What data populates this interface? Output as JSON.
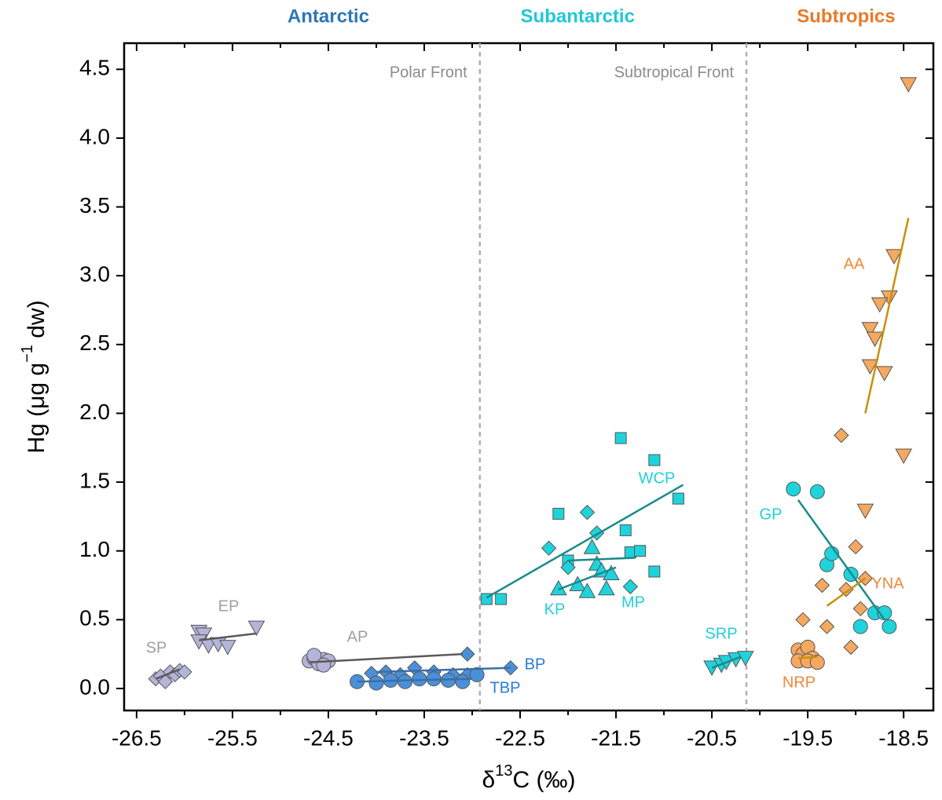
{
  "chart_data": {
    "type": "scatter",
    "xlabel_parts": [
      "δ",
      "13",
      "C (‰)"
    ],
    "ylabel_parts": [
      "Hg (μg g",
      "−1",
      " dw)"
    ],
    "xlim": [
      -26.63,
      -18.19
    ],
    "ylim": [
      -0.16,
      4.69
    ],
    "xticks": [
      -26.5,
      -25.5,
      -24.5,
      -23.5,
      -22.5,
      -21.5,
      -20.5,
      -19.5,
      -18.5
    ],
    "xminorticks": [
      -26,
      -25,
      -24,
      -23,
      -22,
      -21,
      -20,
      -19
    ],
    "yticks": [
      {
        "value": 0,
        "label": "0.0"
      },
      0.5,
      {
        "value": 1,
        "label": "1.0"
      },
      1.5,
      {
        "value": 2,
        "label": "2.0"
      },
      2.5,
      {
        "value": 3,
        "label": "3.0"
      },
      3.5,
      {
        "value": 4,
        "label": "4.0"
      },
      4.5
    ],
    "regions": [
      {
        "name": "Antarctic",
        "color": "#2e75b6",
        "x": -24.5
      },
      {
        "name": "Subantarctic",
        "color": "#1fc8d4",
        "x": -21.9
      },
      {
        "name": "Subtropics",
        "color": "#e87b2a",
        "x": -19.1
      }
    ],
    "fronts": [
      {
        "name": "Polar Front",
        "x": -22.92
      },
      {
        "name": "Subtropical Front",
        "x": -20.14
      }
    ],
    "series": [
      {
        "name": "SP",
        "marker": "diamond",
        "color": "#b4b4d8",
        "line_color": "#5a5a5a",
        "label_color": "#a0a0a0",
        "x": [
          -26.3,
          -26.25,
          -26.2,
          -26.15,
          -26.1,
          -26.05,
          -26.0
        ],
        "y": [
          0.07,
          0.09,
          0.05,
          0.12,
          0.1,
          0.13,
          0.12
        ],
        "fit_x": [
          -26.3,
          -26.05
        ],
        "fit_y": [
          0.07,
          0.14
        ]
      },
      {
        "name": "EP",
        "marker": "tri-down",
        "color": "#b4b4d8",
        "line_color": "#5a5a5a",
        "label_color": "#a0a0a0",
        "x": [
          -25.85,
          -25.8,
          -25.85,
          -25.75,
          -25.65,
          -25.55,
          -25.25
        ],
        "y": [
          0.42,
          0.4,
          0.35,
          0.32,
          0.33,
          0.31,
          0.45
        ],
        "fit_x": [
          -25.85,
          -25.25
        ],
        "fit_y": [
          0.35,
          0.4
        ]
      },
      {
        "name": "AP",
        "marker": "circle",
        "color": "#b4b4d8",
        "line_color": "#5a5a5a",
        "label_color": "#a0a0a0",
        "x": [
          -24.7,
          -24.65,
          -24.6,
          -24.55,
          -24.5,
          -24.65,
          -24.55
        ],
        "y": [
          0.2,
          0.22,
          0.18,
          0.21,
          0.2,
          0.24,
          0.17
        ],
        "fit_x": [
          -24.7,
          -23.1
        ],
        "fit_y": [
          0.19,
          0.25
        ]
      },
      {
        "name": "BP",
        "marker": "diamond",
        "color": "#4a90d9",
        "line_color": "#3b6ea5",
        "label_color": "#2a7bd6",
        "x": [
          -24.05,
          -23.9,
          -23.75,
          -23.6,
          -23.4,
          -23.2,
          -23.05,
          -23.05,
          -22.6
        ],
        "y": [
          0.11,
          0.12,
          0.1,
          0.15,
          0.12,
          0.1,
          0.1,
          0.25,
          0.15
        ],
        "fit_x": [
          -24.0,
          -22.6
        ],
        "fit_y": [
          0.12,
          0.15
        ]
      },
      {
        "name": "TBP",
        "marker": "circle",
        "color": "#4a90d9",
        "line_color": "#3b6ea5",
        "label_color": "#2a7bd6",
        "x": [
          -24.2,
          -24.0,
          -23.85,
          -23.7,
          -23.55,
          -23.4,
          -23.25,
          -23.1,
          -22.95
        ],
        "y": [
          0.05,
          0.04,
          0.06,
          0.05,
          0.07,
          0.07,
          0.06,
          0.05,
          0.1
        ],
        "fit_x": [
          -24.2,
          -23.0
        ],
        "fit_y": [
          0.05,
          0.07
        ]
      },
      {
        "name": "WCP",
        "marker": "square",
        "color": "#1ed3db",
        "line_color": "#1a8a8a",
        "label_color": "#20d0d8",
        "x": [
          -22.85,
          -22.7,
          -22.1,
          -22.0,
          -21.45,
          -21.4,
          -21.35,
          -21.25,
          -21.1,
          -21.1,
          -20.85
        ],
        "y": [
          0.65,
          0.65,
          1.27,
          0.93,
          1.82,
          1.15,
          0.99,
          1.0,
          0.85,
          1.66,
          1.38
        ],
        "fit_x": [
          -22.85,
          -20.8
        ],
        "fit_y": [
          0.66,
          1.48
        ]
      },
      {
        "name": "MP",
        "marker": "diamond",
        "color": "#1ed3db",
        "line_color": "#1a8a8a",
        "label_color": "#20d0d8",
        "x": [
          -22.2,
          -22.0,
          -21.8,
          -21.7,
          -21.35
        ],
        "y": [
          1.02,
          0.88,
          1.28,
          1.13,
          0.74
        ],
        "fit_x": [
          -22.0,
          -21.3
        ],
        "fit_y": [
          0.93,
          0.95
        ]
      },
      {
        "name": "KP",
        "marker": "tri-up",
        "color": "#1ed3db",
        "line_color": "#1a8a8a",
        "label_color": "#20d0d8",
        "x": [
          -22.1,
          -21.9,
          -21.8,
          -21.75,
          -21.7,
          -21.65,
          -21.6,
          -21.55
        ],
        "y": [
          0.72,
          0.75,
          0.7,
          1.02,
          0.9,
          0.85,
          0.72,
          0.83
        ],
        "fit_x": [
          -22.1,
          -21.5
        ],
        "fit_y": [
          0.72,
          0.88
        ]
      },
      {
        "name": "SRP",
        "marker": "tri-down",
        "color": "#1ed3db",
        "line_color": "#1a8a8a",
        "label_color": "#20d0d8",
        "x": [
          -20.5,
          -20.4,
          -20.35,
          -20.25,
          -20.15
        ],
        "y": [
          0.16,
          0.18,
          0.2,
          0.22,
          0.23
        ],
        "fit_x": [
          -20.5,
          -20.2
        ],
        "fit_y": [
          0.15,
          0.23
        ]
      },
      {
        "name": "GP",
        "marker": "circle",
        "color": "#1ed3db",
        "line_color": "#1a8a8a",
        "label_color": "#20d0d8",
        "x": [
          -19.65,
          -19.4,
          -19.3,
          -19.25,
          -19.05,
          -18.95,
          -18.8,
          -18.7,
          -18.65
        ],
        "y": [
          1.45,
          1.43,
          0.9,
          0.98,
          0.83,
          0.45,
          0.55,
          0.55,
          0.45
        ],
        "fit_x": [
          -19.6,
          -18.7
        ],
        "fit_y": [
          1.37,
          0.5
        ]
      },
      {
        "name": "AA",
        "marker": "tri-down",
        "color": "#f5a860",
        "line_color": "#c8900a",
        "label_color": "#f0883a",
        "x": [
          -18.45,
          -18.6,
          -18.65,
          -18.75,
          -18.85,
          -18.8,
          -18.85,
          -18.7,
          -18.5,
          -18.9
        ],
        "y": [
          4.4,
          3.15,
          2.85,
          2.8,
          2.62,
          2.55,
          2.35,
          2.3,
          1.7,
          1.3
        ],
        "fit_x": [
          -18.9,
          -18.45
        ],
        "fit_y": [
          2.0,
          3.42
        ]
      },
      {
        "name": "YNA",
        "marker": "diamond",
        "color": "#f5a860",
        "line_color": "#c8900a",
        "label_color": "#f0883a",
        "x": [
          -19.15,
          -19.35,
          -19.1,
          -19.0,
          -18.95,
          -18.9,
          -19.55,
          -19.3,
          -19.05
        ],
        "y": [
          1.84,
          0.75,
          0.72,
          1.03,
          0.58,
          0.8,
          0.5,
          0.45,
          0.3
        ],
        "fit_x": [
          -19.3,
          -18.9
        ],
        "fit_y": [
          0.6,
          0.8
        ]
      },
      {
        "name": "NRP",
        "marker": "circle",
        "color": "#f5a860",
        "line_color": "#c8900a",
        "label_color": "#f0883a",
        "x": [
          -19.6,
          -19.55,
          -19.5,
          -19.45,
          -19.6,
          -19.5,
          -19.4
        ],
        "y": [
          0.28,
          0.25,
          0.3,
          0.22,
          0.2,
          0.2,
          0.19
        ],
        "fit_x": [
          -19.6,
          -19.4
        ],
        "fit_y": [
          0.22,
          0.23
        ]
      }
    ]
  }
}
